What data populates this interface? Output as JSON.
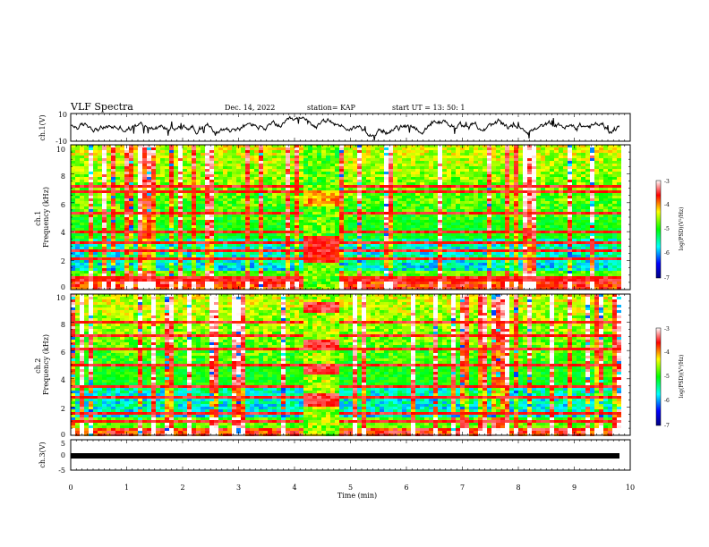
{
  "header": {
    "title": "VLF Spectra",
    "date": "Dec. 14, 2022",
    "station": "station= KAP",
    "start_ut": "start  UT  =   13: 50: 1"
  },
  "colors": {
    "colormap": [
      "#000080",
      "#0000ff",
      "#00ffff",
      "#00ff00",
      "#ffff00",
      "#ff0000",
      "#ffffff"
    ]
  },
  "chart_data": [
    {
      "type": "line",
      "ylabel": "ch.1(V)",
      "ylim": [
        -10,
        10
      ],
      "y_ticks": [
        "10",
        "-10"
      ],
      "xlim": [
        0,
        10
      ]
    },
    {
      "type": "heatmap",
      "ylabel": "ch.1\nFrequency (kHz)",
      "ylim": [
        0,
        10
      ],
      "y_ticks": [
        "0",
        "2",
        "4",
        "6",
        "8",
        "10"
      ],
      "xlim": [
        0,
        10
      ],
      "colorbar": {
        "label": "log(PSD)(V²/Hz)",
        "range": [
          -7,
          -3
        ],
        "ticks": [
          "-3",
          "-4",
          "-5",
          "-6",
          "-7"
        ]
      }
    },
    {
      "type": "heatmap",
      "ylabel": "ch.2\nFrequency (kHz)",
      "ylim": [
        0,
        10
      ],
      "y_ticks": [
        "0",
        "2",
        "4",
        "6",
        "8",
        "10"
      ],
      "xlim": [
        0,
        10
      ],
      "colorbar": {
        "label": "log(PSD)(V²/Hz)",
        "range": [
          -7,
          -3
        ],
        "ticks": [
          "-3",
          "-4",
          "-5",
          "-6",
          "-7"
        ]
      }
    },
    {
      "type": "line",
      "ylabel": "ch.3(V)",
      "ylim": [
        -5,
        5
      ],
      "y_ticks": [
        "5",
        "0",
        "-5"
      ],
      "value": -0.3,
      "xlim": [
        0,
        10
      ],
      "x_ticks": [
        "0",
        "1",
        "2",
        "3",
        "4",
        "5",
        "6",
        "7",
        "8",
        "9",
        "10"
      ],
      "xlabel": "Time (min)"
    }
  ]
}
